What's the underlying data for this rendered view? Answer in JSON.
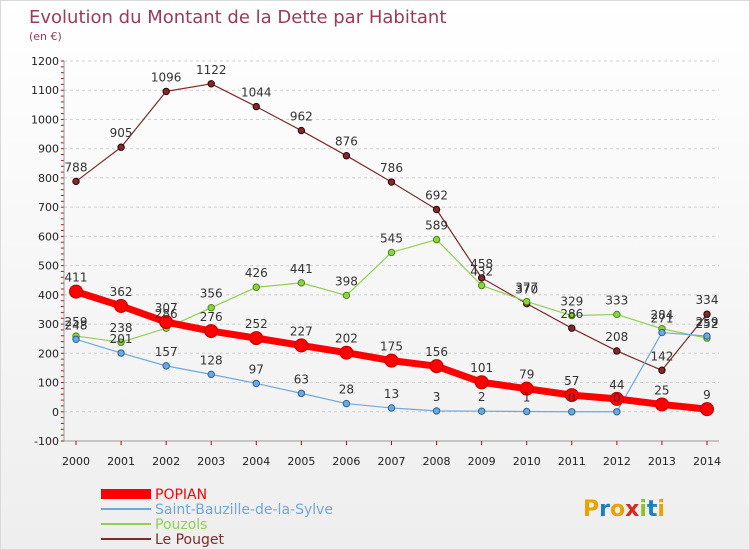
{
  "chart_data": {
    "type": "line",
    "title": "Evolution du Montant de la Dette par Habitant",
    "subtitle": "(en €)",
    "x": [
      2000,
      2001,
      2002,
      2003,
      2004,
      2005,
      2006,
      2007,
      2008,
      2009,
      2010,
      2011,
      2012,
      2013,
      2014
    ],
    "ylim": [
      -100,
      1200
    ],
    "yticks": [
      -100,
      0,
      100,
      200,
      300,
      400,
      500,
      600,
      700,
      800,
      900,
      1000,
      1100,
      1200
    ],
    "grid": "horizontal",
    "legend_position": "bottom-left",
    "series": [
      {
        "name": "POPIAN",
        "color": "#ff0000",
        "values": [
          411,
          362,
          307,
          276,
          252,
          227,
          202,
          175,
          156,
          101,
          79,
          57,
          44,
          25,
          9
        ]
      },
      {
        "name": "Saint-Bauzille-de-la-Sylve",
        "color": "#6fa8dc",
        "values": [
          248,
          201,
          157,
          128,
          97,
          63,
          28,
          13,
          3,
          2,
          1,
          0,
          0,
          271,
          259
        ]
      },
      {
        "name": "Pouzols",
        "color": "#8fd14f",
        "values": [
          259,
          238,
          286,
          356,
          426,
          441,
          398,
          545,
          589,
          432,
          377,
          329,
          333,
          284,
          252
        ]
      },
      {
        "name": "Le Pouget",
        "color": "#7b2c2c",
        "values": [
          788,
          905,
          1096,
          1122,
          1044,
          962,
          876,
          786,
          692,
          458,
          370,
          286,
          208,
          142,
          334
        ]
      }
    ]
  },
  "logo": {
    "text": "Proxiti",
    "letter_colors": [
      "#e9a300",
      "#1a7fc0",
      "#e9a300",
      "#d42a1f",
      "#8fc127",
      "#1a7fc0",
      "#e9a300"
    ]
  }
}
